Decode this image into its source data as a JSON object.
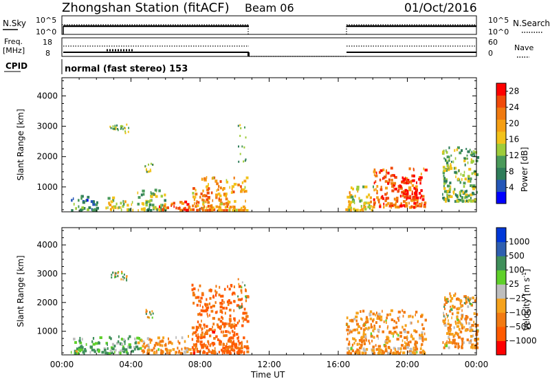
{
  "header": {
    "title": "Zhongshan Station (fitACF)",
    "beam": "Beam 06",
    "date": "01/Oct/2016"
  },
  "top_panels": {
    "nsky_label": "N.Sky",
    "nsky_ticks": [
      "10^5",
      "10^0"
    ],
    "nsearch_label": "N.Search",
    "nsearch_ticks": [
      "10^5",
      "10^0"
    ],
    "freq_label_line1": "Freq.",
    "freq_label_line2": "[MHz]",
    "freq_ticks": [
      "18",
      "8"
    ],
    "nave_label": "Nave",
    "nave_ticks": [
      "60",
      "0"
    ],
    "cpid_label": "CPID",
    "cpid_text": "normal (fast stereo) 153"
  },
  "colors": {
    "power": [
      "#0000ff",
      "#2456b8",
      "#2f7d5a",
      "#4a9a5a",
      "#9ecc3a",
      "#f2c21a",
      "#f59f14",
      "#f07a10",
      "#f04a0a",
      "#ff0000"
    ],
    "velocity": [
      "#ff0000",
      "#ff5a00",
      "#f27a12",
      "#f5a21c",
      "#bebebe",
      "#5fd02a",
      "#3f8f5a",
      "#2f5fb0",
      "#0038d8"
    ]
  },
  "chart_data": [
    {
      "type": "heatmap",
      "title": "Power",
      "ylabel": "Slant Range [km]",
      "xlabel": "Time UT",
      "x_ticks": [
        "00:00",
        "04:00",
        "08:00",
        "12:00",
        "16:00",
        "20:00",
        "00:00"
      ],
      "xlim_hours": [
        0,
        24
      ],
      "y_ticks": [
        1000,
        2000,
        3000,
        4000
      ],
      "ylim": [
        180,
        4600
      ],
      "colorbar_label": "Power [dB]",
      "colorbar_ticks": [
        4,
        8,
        12,
        16,
        20,
        24,
        28
      ],
      "colorbar_range": [
        0,
        30
      ],
      "data_gaps_hours": [
        [
          10.75,
          16.4
        ]
      ],
      "dominant_values": [
        {
          "hours": [
            0.5,
            2.0
          ],
          "range_km": [
            200,
            700
          ],
          "power_db": 8
        },
        {
          "hours": [
            2.5,
            4.0
          ],
          "range_km": [
            200,
            700
          ],
          "power_db": 14
        },
        {
          "hours": [
            4.0,
            6.0
          ],
          "range_km": [
            200,
            900
          ],
          "power_db": 12
        },
        {
          "hours": [
            5.5,
            7.5
          ],
          "range_km": [
            200,
            500
          ],
          "power_db": 24
        },
        {
          "hours": [
            7.5,
            10.7
          ],
          "range_km": [
            200,
            1300
          ],
          "power_db": 20
        },
        {
          "hours": [
            16.4,
            18.0
          ],
          "range_km": [
            200,
            1000
          ],
          "power_db": 16
        },
        {
          "hours": [
            18.0,
            21.0
          ],
          "range_km": [
            300,
            1600
          ],
          "power_db": 24
        },
        {
          "hours": [
            19.5,
            20.8
          ],
          "range_km": [
            600,
            1300
          ],
          "power_db": 30
        },
        {
          "hours": [
            22.0,
            24.0
          ],
          "range_km": [
            500,
            2300
          ],
          "power_db": 12
        }
      ]
    },
    {
      "type": "heatmap",
      "title": "Velocity",
      "ylabel": "Slant Range [km]",
      "xlabel": "Time UT",
      "x_ticks": [
        "00:00",
        "04:00",
        "08:00",
        "12:00",
        "16:00",
        "20:00",
        "00:00"
      ],
      "xlim_hours": [
        0,
        24
      ],
      "y_ticks": [
        1000,
        2000,
        3000,
        4000
      ],
      "ylim": [
        180,
        4600
      ],
      "colorbar_label": "Velocity [m s",
      "colorbar_label_sup": "-1",
      "colorbar_label_end": "]",
      "colorbar_ticks": [
        "1000",
        "500",
        "100",
        "25",
        "−25",
        "−100",
        "−500",
        "−1000"
      ],
      "data_gaps_hours": [
        [
          10.75,
          16.4
        ]
      ],
      "dominant_values": [
        {
          "hours": [
            0.5,
            4.5
          ],
          "range_km": [
            200,
            800
          ],
          "velocity_ms": 100
        },
        {
          "hours": [
            4.5,
            7.5
          ],
          "range_km": [
            200,
            800
          ],
          "velocity_ms": -100
        },
        {
          "hours": [
            7.5,
            10.7
          ],
          "range_km": [
            200,
            2600
          ],
          "velocity_ms": -500
        },
        {
          "hours": [
            16.4,
            21.0
          ],
          "range_km": [
            200,
            1700
          ],
          "velocity_ms": -100
        },
        {
          "hours": [
            22.0,
            24.0
          ],
          "range_km": [
            400,
            2300
          ],
          "velocity_ms": -100
        }
      ]
    }
  ]
}
